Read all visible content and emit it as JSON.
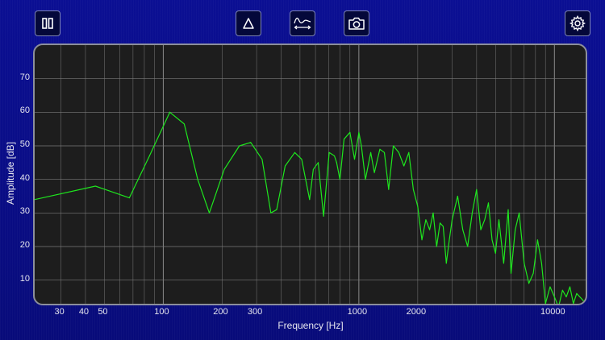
{
  "toolbar": {
    "pause_icon": "pause-icon",
    "peak_icon": "triangle-icon",
    "average_icon": "spectrum-range-icon",
    "camera_icon": "camera-icon",
    "settings_icon": "gear-icon"
  },
  "colors": {
    "trace": "#1ee61e",
    "grid": "#6b6b6b",
    "plot_bg": "#1d1d1d"
  },
  "chart_data": {
    "type": "line",
    "xlabel": "Frequency [Hz]",
    "ylabel": "Amplitude [dB]",
    "xscale": "log",
    "xlim": [
      22,
      15000
    ],
    "ylim": [
      2,
      80
    ],
    "grid": true,
    "x_ticks": [
      30,
      40,
      50,
      100,
      200,
      300,
      1000,
      2000,
      10000
    ],
    "x_tick_labels": [
      "30",
      "40",
      "50",
      "100",
      "200",
      "300",
      "1000",
      "2000",
      "10000"
    ],
    "y_ticks": [
      10,
      20,
      30,
      40,
      50,
      60,
      70
    ],
    "y_tick_labels": [
      "10",
      "20",
      "30",
      "40",
      "50",
      "60",
      "70"
    ],
    "series": [
      {
        "x": [
          22,
          45,
          67,
          85,
          108,
          128,
          150,
          172,
          205,
          245,
          280,
          320,
          355,
          380,
          420,
          470,
          510,
          560,
          585,
          620,
          660,
          705,
          750,
          770,
          800,
          840,
          900,
          950,
          1000,
          1030,
          1080,
          1150,
          1200,
          1280,
          1350,
          1420,
          1500,
          1600,
          1700,
          1800,
          1900,
          2000,
          2100,
          2200,
          2300,
          2400,
          2500,
          2600,
          2700,
          2800,
          2900,
          3000,
          3200,
          3400,
          3600,
          3800,
          4000,
          4200,
          4400,
          4600,
          4800,
          5000,
          5200,
          5500,
          5800,
          6000,
          6300,
          6600,
          7000,
          7400,
          7800,
          8200,
          8600,
          9000,
          9500,
          10000,
          10500,
          11000,
          11500,
          12000,
          12500,
          13000,
          14000,
          15000
        ],
        "y": [
          34,
          38,
          34.5,
          47,
          60,
          56.5,
          40,
          30,
          43,
          50,
          51,
          46,
          30,
          31,
          44,
          48,
          46,
          34,
          43,
          45,
          29,
          48,
          47,
          45,
          40,
          52,
          54,
          46,
          54,
          50,
          40,
          48,
          42,
          49,
          48,
          37,
          50,
          48,
          44,
          48,
          37,
          32,
          22,
          28,
          25,
          30,
          20,
          27,
          26,
          15,
          22,
          28,
          35,
          25,
          20,
          30,
          37,
          25,
          28,
          33,
          22,
          18,
          28,
          15,
          31,
          12,
          25,
          30,
          15,
          9,
          12,
          22,
          15,
          3,
          8,
          5,
          2,
          7,
          5,
          8,
          3,
          6,
          4,
          2
        ]
      }
    ]
  }
}
